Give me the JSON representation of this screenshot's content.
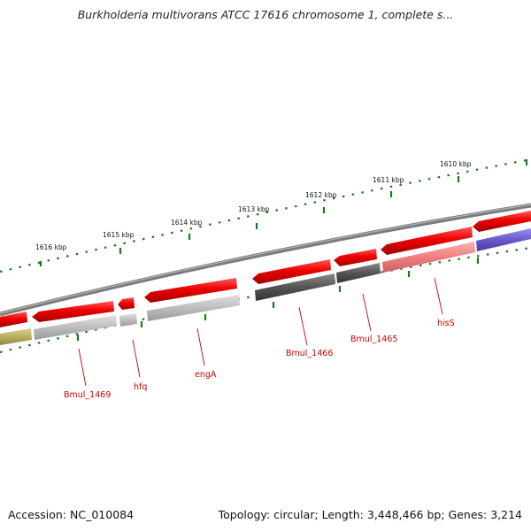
{
  "title": "Burkholderia multivorans ATCC 17616 chromosome 1, complete s...",
  "footer": {
    "accession": "Accession: NC_010084",
    "topology": "Topology: circular; Length: 3,448,466 bp; Genes: 3,214"
  },
  "scale_labels": [
    "1616 kbp",
    "1615 kbp",
    "1614 kbp",
    "1613 kbp",
    "1612 kbp",
    "1611 kbp",
    "1610 kbp"
  ],
  "gene_labels": [
    "Bmul_1469",
    "hfq",
    "engA",
    "Bmul_1466",
    "Bmul_1465",
    "hisS"
  ],
  "colors": {
    "backbone": "#7a7a7a",
    "gene_red": "#ee0000",
    "gene_dark": "#555555",
    "gene_light_gray": "#bdbdbd",
    "gene_pink": "#f08080",
    "gene_purple": "#6a5acd",
    "gene_olive": "#b8b060",
    "tick_green": "#1a7a1a",
    "label_red": "#cc0000"
  }
}
